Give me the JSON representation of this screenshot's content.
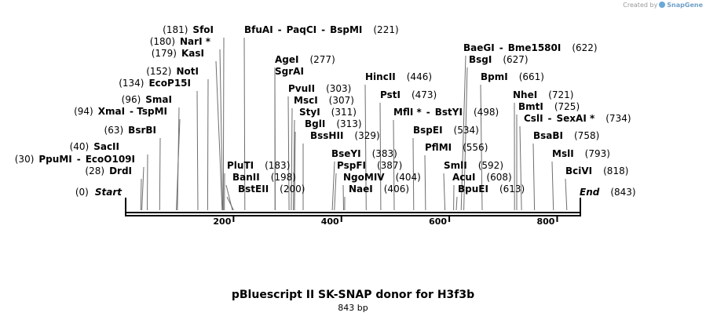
{
  "credit": {
    "prefix": "Created by",
    "brand": "SnapGene"
  },
  "title": "pBluescript II SK-SNAP donor for H3f3b",
  "length_label": "843 bp",
  "sequence_length": 843,
  "ruler_ticks": [
    200,
    400,
    600,
    800
  ],
  "ends": {
    "start_label": "Start",
    "start_pos": "(0)",
    "end_label": "End",
    "end_pos": "(843)"
  },
  "sites": [
    {
      "id": "drdi",
      "names": [
        "DrdI"
      ],
      "pos": "(28)",
      "bp": 28,
      "side": "left"
    },
    {
      "id": "ppumi",
      "names": [
        "PpuMI",
        "EcoO109I"
      ],
      "pos": "(30)",
      "bp": 30,
      "side": "left"
    },
    {
      "id": "sacii",
      "names": [
        "SacII"
      ],
      "pos": "(40)",
      "bp": 40,
      "side": "left"
    },
    {
      "id": "bsrbi",
      "names": [
        "BsrBI"
      ],
      "pos": "(63)",
      "bp": 63,
      "side": "left"
    },
    {
      "id": "xmai",
      "names": [
        "XmaI",
        "TspMI"
      ],
      "pos": "(94)",
      "bp": 94,
      "side": "left"
    },
    {
      "id": "smai",
      "names": [
        "SmaI"
      ],
      "pos": "(96)",
      "bp": 96,
      "side": "left"
    },
    {
      "id": "ecop15i",
      "names": [
        "EcoP15I"
      ],
      "pos": "(134)",
      "bp": 134,
      "side": "left"
    },
    {
      "id": "noti",
      "names": [
        "NotI"
      ],
      "pos": "(152)",
      "bp": 152,
      "side": "left"
    },
    {
      "id": "kasi",
      "names": [
        "KasI"
      ],
      "pos": "(179)",
      "bp": 179,
      "side": "left"
    },
    {
      "id": "nari",
      "names": [
        "NarI *"
      ],
      "pos": "(180)",
      "bp": 180,
      "side": "left"
    },
    {
      "id": "sfoi",
      "names": [
        "SfoI"
      ],
      "pos": "(181)",
      "bp": 181,
      "side": "left"
    },
    {
      "id": "pluti",
      "names": [
        "PluTI"
      ],
      "pos": "(183)",
      "bp": 183,
      "side": "right"
    },
    {
      "id": "banii",
      "names": [
        "BanII"
      ],
      "pos": "(198)",
      "bp": 198,
      "side": "right"
    },
    {
      "id": "bsteii",
      "names": [
        "BstEII"
      ],
      "pos": "(200)",
      "bp": 200,
      "side": "right"
    },
    {
      "id": "bfuai",
      "names": [
        "BfuAI",
        "PaqCI",
        "BspMI"
      ],
      "pos": "(221)",
      "bp": 221,
      "side": "right"
    },
    {
      "id": "agei",
      "names": [
        "AgeI"
      ],
      "pos": "(277)",
      "bp": 277,
      "side": "right"
    },
    {
      "id": "sgrai",
      "names": [
        "SgrAI"
      ],
      "pos": "",
      "bp": 277,
      "side": "right"
    },
    {
      "id": "pvuii",
      "names": [
        "PvuII"
      ],
      "pos": "(303)",
      "bp": 303,
      "side": "right"
    },
    {
      "id": "msci",
      "names": [
        "MscI"
      ],
      "pos": "(307)",
      "bp": 307,
      "side": "right"
    },
    {
      "id": "styi",
      "names": [
        "StyI"
      ],
      "pos": "(311)",
      "bp": 311,
      "side": "right"
    },
    {
      "id": "bgli",
      "names": [
        "BglI"
      ],
      "pos": "(313)",
      "bp": 313,
      "side": "right"
    },
    {
      "id": "bsshii",
      "names": [
        "BssHII"
      ],
      "pos": "(329)",
      "bp": 329,
      "side": "right"
    },
    {
      "id": "bseyi",
      "names": [
        "BseYI"
      ],
      "pos": "(383)",
      "bp": 383,
      "side": "right"
    },
    {
      "id": "pspfi",
      "names": [
        "PspFI"
      ],
      "pos": "(387)",
      "bp": 387,
      "side": "right"
    },
    {
      "id": "ngomiv",
      "names": [
        "NgoMIV"
      ],
      "pos": "(404)",
      "bp": 404,
      "side": "right"
    },
    {
      "id": "naei",
      "names": [
        "NaeI"
      ],
      "pos": "(406)",
      "bp": 406,
      "side": "right"
    },
    {
      "id": "hincii",
      "names": [
        "HincII"
      ],
      "pos": "(446)",
      "bp": 446,
      "side": "right"
    },
    {
      "id": "psti",
      "names": [
        "PstI"
      ],
      "pos": "(473)",
      "bp": 473,
      "side": "right"
    },
    {
      "id": "mfli",
      "names": [
        "MflI *",
        "BstYI"
      ],
      "pos": "(498)",
      "bp": 498,
      "side": "right"
    },
    {
      "id": "bspei",
      "names": [
        "BspEI"
      ],
      "pos": "(534)",
      "bp": 534,
      "side": "right"
    },
    {
      "id": "pflmi",
      "names": [
        "PflMI"
      ],
      "pos": "(556)",
      "bp": 556,
      "side": "right"
    },
    {
      "id": "smli",
      "names": [
        "SmlI"
      ],
      "pos": "(592)",
      "bp": 592,
      "side": "right"
    },
    {
      "id": "acui",
      "names": [
        "AcuI"
      ],
      "pos": "(608)",
      "bp": 608,
      "side": "right"
    },
    {
      "id": "bpuei",
      "names": [
        "BpuEI"
      ],
      "pos": "(613)",
      "bp": 613,
      "side": "right"
    },
    {
      "id": "baegi",
      "names": [
        "BaeGI",
        "Bme1580I"
      ],
      "pos": "(622)",
      "bp": 622,
      "side": "right"
    },
    {
      "id": "bsgi",
      "names": [
        "BsgI"
      ],
      "pos": "(627)",
      "bp": 627,
      "side": "right"
    },
    {
      "id": "bpmi",
      "names": [
        "BpmI"
      ],
      "pos": "(661)",
      "bp": 661,
      "side": "right"
    },
    {
      "id": "nhei",
      "names": [
        "NheI"
      ],
      "pos": "(721)",
      "bp": 721,
      "side": "right"
    },
    {
      "id": "bmti",
      "names": [
        "BmtI"
      ],
      "pos": "(725)",
      "bp": 725,
      "side": "right"
    },
    {
      "id": "csli",
      "names": [
        "CslI",
        "SexAI *"
      ],
      "pos": "(734)",
      "bp": 734,
      "side": "right"
    },
    {
      "id": "bsabi",
      "names": [
        "BsaBI"
      ],
      "pos": "(758)",
      "bp": 758,
      "side": "right"
    },
    {
      "id": "msli",
      "names": [
        "MslI"
      ],
      "pos": "(793)",
      "bp": 793,
      "side": "right"
    },
    {
      "id": "bcivi",
      "names": [
        "BciVI"
      ],
      "pos": "(818)",
      "bp": 818,
      "side": "right"
    }
  ]
}
